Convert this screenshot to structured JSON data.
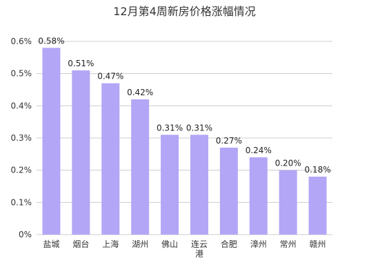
{
  "chart_data": {
    "type": "bar",
    "title": "12月第4周新房价格涨幅情况",
    "categories": [
      "盐城",
      "烟台",
      "上海",
      "湖州",
      "佛山",
      "连云港",
      "合肥",
      "漳州",
      "常州",
      "赣州"
    ],
    "values": [
      0.58,
      0.51,
      0.47,
      0.42,
      0.31,
      0.31,
      0.27,
      0.24,
      0.2,
      0.18
    ],
    "value_labels": [
      "0.58%",
      "0.51%",
      "0.47%",
      "0.42%",
      "0.31%",
      "0.31%",
      "0.27%",
      "0.24%",
      "0.20%",
      "0.18%"
    ],
    "y_ticks": [
      0,
      0.1,
      0.2,
      0.3,
      0.4,
      0.5,
      0.6
    ],
    "y_tick_labels": [
      "0%",
      "0.1%",
      "0.2%",
      "0.3%",
      "0.4%",
      "0.5%",
      "0.6%"
    ],
    "ylim": [
      0,
      0.6
    ],
    "unit": "%",
    "xlabel": "",
    "ylabel": "",
    "grid": true,
    "bar_color": "#b3a6f6",
    "grid_color": "#cccccc"
  }
}
